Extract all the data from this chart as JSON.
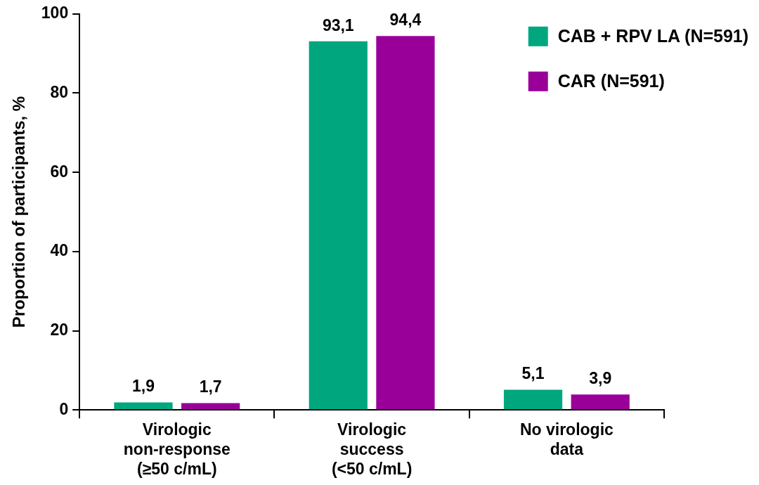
{
  "chart_data": {
    "type": "bar",
    "ylabel": "Proportion of participants, %",
    "categories": [
      "Virologic\nnon-response\n(≥50 c/mL)",
      "Virologic\nsuccess\n(<50 c/mL)",
      "No virologic\ndata"
    ],
    "series": [
      {
        "name": "CAB + RPV LA (N=591)",
        "color": "#00a77e",
        "values": [
          1.9,
          93.1,
          5.1
        ],
        "value_labels": [
          "1,9",
          "93,1",
          "5,1"
        ]
      },
      {
        "name": "CAR (N=591)",
        "color": "#990099",
        "values": [
          1.7,
          94.4,
          3.9
        ],
        "value_labels": [
          "1,7",
          "94,4",
          "3,9"
        ]
      }
    ],
    "ylim": [
      0,
      100
    ],
    "yticks": [
      0,
      20,
      40,
      60,
      80,
      100
    ],
    "grid": false,
    "legend": "top right"
  }
}
